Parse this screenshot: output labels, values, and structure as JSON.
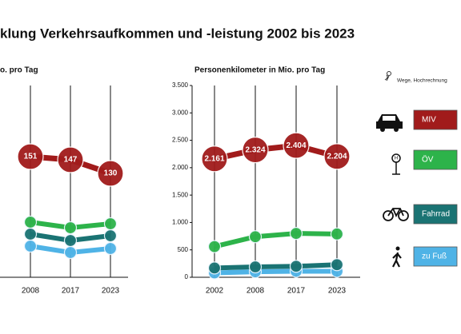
{
  "title": "klung Verkehrsaufkommen und -leistung 2002 bis 2023",
  "chart_data": [
    {
      "type": "line",
      "title": "o. pro Tag",
      "categories": [
        "2008",
        "2017",
        "2023"
      ],
      "ylim": [
        0,
        240
      ],
      "series": [
        {
          "color": "#a11b1b",
          "values": [
            151,
            147,
            130
          ]
        },
        {
          "color": "#2db34a",
          "values": [
            69,
            62,
            67
          ]
        },
        {
          "color": "#1a7373",
          "values": [
            54,
            46,
            52
          ]
        },
        {
          "color": "#4fb3e6",
          "values": [
            39,
            31,
            36
          ]
        }
      ]
    },
    {
      "type": "line",
      "title": "Personenkilometer  in Mio. pro Tag",
      "categories": [
        "2002",
        "2008",
        "2017",
        "2023"
      ],
      "ylim": [
        0,
        3500
      ],
      "yticks": [
        0,
        500,
        {
          "value": 1000,
          "label": "1.000"
        },
        {
          "value": 1500,
          "label": "1.500"
        },
        {
          "value": 2000,
          "label": "2.000"
        },
        {
          "value": 2500,
          "label": "2.500"
        },
        {
          "value": 3000,
          "label": "3.000"
        },
        {
          "value": 3500,
          "label": "3.500"
        }
      ],
      "annotation": "Wege, Hochrechnung",
      "series": [
        {
          "name": "MIV",
          "color": "#a11b1b",
          "values": [
            2161,
            2324,
            2404,
            2204
          ],
          "value_labels": [
            "2.161",
            "2.324",
            "2.404",
            "2.204"
          ]
        },
        {
          "name": "ÖV",
          "color": "#2db34a",
          "values": [
            560,
            740,
            800,
            790
          ]
        },
        {
          "name": "Fahrrad",
          "color": "#1a7373",
          "values": [
            170,
            190,
            200,
            230
          ]
        },
        {
          "name": "zu Fuß",
          "color": "#4fb3e6",
          "values": [
            80,
            100,
            110,
            110
          ]
        }
      ]
    }
  ]
}
